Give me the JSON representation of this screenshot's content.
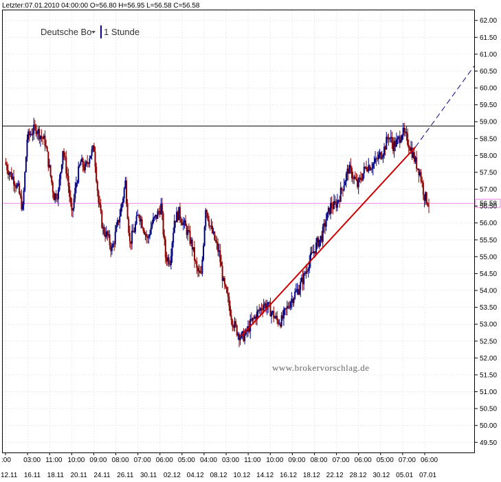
{
  "header": {
    "quote_line": "Letzter:07.01.2010 04:00:00 O=56.80 H=56.95 L=56.58 C=56.58"
  },
  "selector": {
    "instrument": "Deutsche Bo",
    "timeframe": "1 Stunde"
  },
  "watermark": "www.brokervorschlag.de",
  "colors": {
    "up_candle": "#000080",
    "down_candle": "#8b0000",
    "trendline": "#cc0000",
    "resistance": "#000000",
    "last_price_line": "#ee82ee",
    "extension_dash": "#000080"
  },
  "chart_data": {
    "type": "candlestick",
    "title": "",
    "ylim": [
      49.2,
      62.3
    ],
    "y_ticks": [
      "62.00",
      "61.50",
      "61.00",
      "60.50",
      "60.00",
      "59.50",
      "59.00",
      "58.50",
      "58.00",
      "57.50",
      "57.00",
      "56.50",
      "56.00",
      "55.50",
      "55.00",
      "54.50",
      "54.00",
      "53.50",
      "53.00",
      "52.50",
      "52.00",
      "51.50",
      "51.00",
      "50.50",
      "50.00",
      "49.50"
    ],
    "x_time_labels": [
      ":00",
      "03:00",
      "11:00",
      "10:00",
      "09:00",
      "08:00",
      "07:00",
      "06:00",
      "05:00",
      "04:00",
      "03:00",
      "11:00",
      "10:00",
      "09:00",
      "08:00",
      "07:00",
      "06:00",
      "05:00",
      "07:00",
      "06:00"
    ],
    "x_date_labels": [
      "12.11",
      "16.11",
      "18.11",
      "20.11",
      "24.11",
      "26.11",
      "30.11",
      "02.12",
      "04.12",
      "08.12",
      "10.12",
      "14.12",
      "16.12",
      "18.12",
      "22.12",
      "28.12",
      "30.12",
      "05.01",
      "07.01"
    ],
    "price_path": [
      57.8,
      57.5,
      57.3,
      57.0,
      56.4,
      58.5,
      58.7,
      58.8,
      58.6,
      58.4,
      57.6,
      56.8,
      56.9,
      58.2,
      57.4,
      56.2,
      57.2,
      57.8,
      57.6,
      58.0,
      58.2,
      56.6,
      55.8,
      55.6,
      55.2,
      55.8,
      56.4,
      57.2,
      55.4,
      55.8,
      56.3,
      55.9,
      55.5,
      56.0,
      56.2,
      56.5,
      55.0,
      54.9,
      56.1,
      56.3,
      56.0,
      55.7,
      55.3,
      54.6,
      54.4,
      56.5,
      55.9,
      55.5,
      55.1,
      54.2,
      53.7,
      53.1,
      52.8,
      52.6,
      52.7,
      53.0,
      53.2,
      53.4,
      53.6,
      53.5,
      53.3,
      53.1,
      53.1,
      53.4,
      53.7,
      53.9,
      54.1,
      54.4,
      54.8,
      55.1,
      55.4,
      55.6,
      56.1,
      56.5,
      56.5,
      56.8,
      57.2,
      57.6,
      57.4,
      57.1,
      57.4,
      57.7,
      57.7,
      57.8,
      58.0,
      58.2,
      58.6,
      58.3,
      58.4,
      58.7,
      58.5,
      58.2,
      57.8,
      57.5,
      56.8,
      56.58
    ],
    "annotations": [
      {
        "kind": "horizontal_line",
        "name": "resistance",
        "y": 58.87
      },
      {
        "kind": "horizontal_line",
        "name": "last_price",
        "y": 56.58,
        "label": "56.58"
      },
      {
        "kind": "trendline",
        "from_index": 53,
        "from_y": 52.65,
        "to_index": 92,
        "to_y": 58.25
      },
      {
        "kind": "trendline_extension",
        "from_index": 92,
        "from_y": 58.25,
        "to_y": 60.65
      }
    ],
    "grid": true,
    "y_axis_position": "right"
  }
}
